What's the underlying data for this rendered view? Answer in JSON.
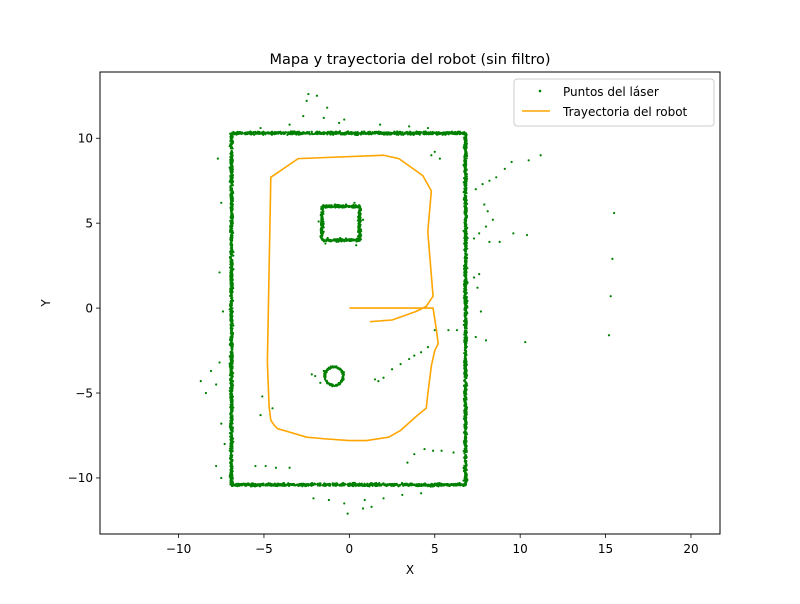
{
  "chart_data": {
    "type": "scatter",
    "title": "Mapa y trayectoria del robot (sin filtro)",
    "xlabel": "X",
    "ylabel": "Y",
    "xlim": [
      -14.6,
      21.7
    ],
    "ylim": [
      -13.3,
      13.9
    ],
    "xticks": [
      -10,
      -5,
      0,
      5,
      10,
      15,
      20
    ],
    "yticks": [
      -10,
      -5,
      0,
      5,
      10
    ],
    "grid": false,
    "legend_position": "top-right",
    "series": [
      {
        "name": "Puntos del láser",
        "kind": "scatter",
        "color": "#008000",
        "segments": [
          {
            "from": [
              -6.9,
              10.3
            ],
            "to": [
              6.8,
              10.3
            ]
          },
          {
            "from": [
              -6.9,
              -10.4
            ],
            "to": [
              6.8,
              -10.4
            ]
          },
          {
            "from": [
              -6.9,
              -10.4
            ],
            "to": [
              -6.9,
              10.3
            ]
          },
          {
            "from": [
              6.8,
              -10.4
            ],
            "to": [
              6.8,
              10.3
            ]
          },
          {
            "from": [
              -1.6,
              4.0
            ],
            "to": [
              0.6,
              4.0
            ]
          },
          {
            "from": [
              -1.6,
              6.0
            ],
            "to": [
              0.6,
              6.0
            ]
          },
          {
            "from": [
              -1.6,
              4.0
            ],
            "to": [
              -1.6,
              6.0
            ]
          },
          {
            "from": [
              0.6,
              4.0
            ],
            "to": [
              0.6,
              6.0
            ]
          }
        ],
        "circles": [
          {
            "cx": -0.9,
            "cy": -4.0,
            "r": 0.55
          }
        ],
        "scattered": [
          [
            -2.4,
            12.6
          ],
          [
            -1.9,
            12.5
          ],
          [
            -2.5,
            12.2
          ],
          [
            -1.3,
            11.8
          ],
          [
            -2.7,
            11.3
          ],
          [
            -1.5,
            11.2
          ],
          [
            -0.3,
            11.1
          ],
          [
            -3.5,
            10.8
          ],
          [
            -0.6,
            10.9
          ],
          [
            1.8,
            10.8
          ],
          [
            3.5,
            10.7
          ],
          [
            4.6,
            10.6
          ],
          [
            -5.2,
            10.6
          ],
          [
            4.8,
            9.0
          ],
          [
            5.0,
            9.2
          ],
          [
            5.3,
            8.8
          ],
          [
            7.4,
            7.0
          ],
          [
            7.8,
            7.3
          ],
          [
            8.2,
            7.5
          ],
          [
            8.6,
            7.7
          ],
          [
            9.1,
            8.2
          ],
          [
            9.5,
            8.6
          ],
          [
            10.5,
            8.7
          ],
          [
            11.2,
            9.0
          ],
          [
            7.9,
            6.1
          ],
          [
            8.1,
            5.7
          ],
          [
            8.4,
            5.2
          ],
          [
            8.0,
            4.8
          ],
          [
            7.6,
            4.4
          ],
          [
            7.3,
            4.1
          ],
          [
            8.2,
            3.9
          ],
          [
            8.8,
            3.9
          ],
          [
            9.6,
            4.4
          ],
          [
            10.4,
            4.3
          ],
          [
            15.5,
            5.6
          ],
          [
            15.4,
            2.9
          ],
          [
            15.3,
            0.7
          ],
          [
            15.2,
            -1.6
          ],
          [
            10.3,
            -2.0
          ],
          [
            8.0,
            -1.9
          ],
          [
            7.4,
            -1.7
          ],
          [
            7.5,
            1.2
          ],
          [
            7.6,
            2.0
          ],
          [
            7.7,
            -0.2
          ],
          [
            7.3,
            1.8
          ],
          [
            5.0,
            -1.3
          ],
          [
            5.8,
            -1.3
          ],
          [
            6.3,
            -1.3
          ],
          [
            -7.7,
            8.8
          ],
          [
            -7.5,
            6.2
          ],
          [
            -7.6,
            2.1
          ],
          [
            -7.4,
            -0.2
          ],
          [
            -7.6,
            -3.2
          ],
          [
            -8.1,
            -3.7
          ],
          [
            -7.8,
            -4.5
          ],
          [
            -8.7,
            -4.3
          ],
          [
            -8.4,
            -5.0
          ],
          [
            -7.5,
            -6.8
          ],
          [
            -7.3,
            -8.0
          ],
          [
            -7.8,
            -9.3
          ],
          [
            -7.5,
            -10.0
          ],
          [
            -5.5,
            -9.3
          ],
          [
            -4.9,
            -9.3
          ],
          [
            -4.3,
            -9.4
          ],
          [
            -3.5,
            -9.4
          ],
          [
            -5.1,
            -5.2
          ],
          [
            -4.5,
            -5.9
          ],
          [
            -5.2,
            -6.3
          ],
          [
            -2.1,
            -11.2
          ],
          [
            -1.2,
            -11.3
          ],
          [
            -0.3,
            -11.5
          ],
          [
            0.9,
            -11.3
          ],
          [
            2.0,
            -11.2
          ],
          [
            3.1,
            -11.0
          ],
          [
            4.2,
            -10.9
          ],
          [
            -0.1,
            -12.1
          ],
          [
            0.8,
            -11.8
          ],
          [
            1.3,
            -11.7
          ],
          [
            3.4,
            -9.1
          ],
          [
            3.8,
            -8.6
          ],
          [
            4.4,
            -8.3
          ],
          [
            4.9,
            -8.4
          ],
          [
            5.4,
            -8.4
          ],
          [
            6.1,
            -8.5
          ],
          [
            -2.0,
            -4.0
          ],
          [
            -1.5,
            -3.7
          ],
          [
            1.5,
            -4.2
          ],
          [
            1.7,
            -4.3
          ],
          [
            2.0,
            -4.1
          ],
          [
            2.5,
            -3.6
          ],
          [
            3.0,
            -3.3
          ],
          [
            3.5,
            -3.0
          ],
          [
            3.8,
            -2.8
          ],
          [
            4.2,
            -2.6
          ],
          [
            4.6,
            -2.3
          ],
          [
            -2.2,
            -3.9
          ],
          [
            -1.7,
            -4.4
          ],
          [
            -0.7,
            6.0
          ],
          [
            -0.2,
            6.1
          ],
          [
            0.3,
            6.2
          ],
          [
            -1.4,
            3.8
          ],
          [
            0.4,
            3.7
          ],
          [
            -1.8,
            5.1
          ],
          [
            0.8,
            5.2
          ]
        ]
      },
      {
        "name": "Trayectoria del robot",
        "kind": "line",
        "color": "#ffa500",
        "x": [
          0.0,
          4.9,
          5.1,
          5.2,
          5.0,
          4.8,
          4.6,
          4.5,
          4.0,
          3.0,
          2.3,
          1.0,
          0.0,
          -1.4,
          -2.5,
          -3.5,
          -4.2,
          -4.4,
          -4.6,
          -4.7,
          -4.8,
          -4.6,
          -3.0,
          2.0,
          2.9,
          4.3,
          4.8,
          4.6,
          4.6,
          4.9,
          4.5,
          3.9,
          2.5,
          1.2
        ],
        "y": [
          0.0,
          0.0,
          -1.3,
          -2.1,
          -2.5,
          -3.4,
          -5.0,
          -5.9,
          -6.3,
          -7.2,
          -7.6,
          -7.8,
          -7.8,
          -7.7,
          -7.6,
          -7.3,
          -7.1,
          -6.9,
          -6.6,
          -5.8,
          -3.2,
          7.7,
          8.8,
          9.0,
          8.8,
          7.8,
          6.9,
          4.6,
          4.4,
          0.7,
          0.1,
          -0.2,
          -0.7,
          -0.8
        ]
      }
    ]
  }
}
